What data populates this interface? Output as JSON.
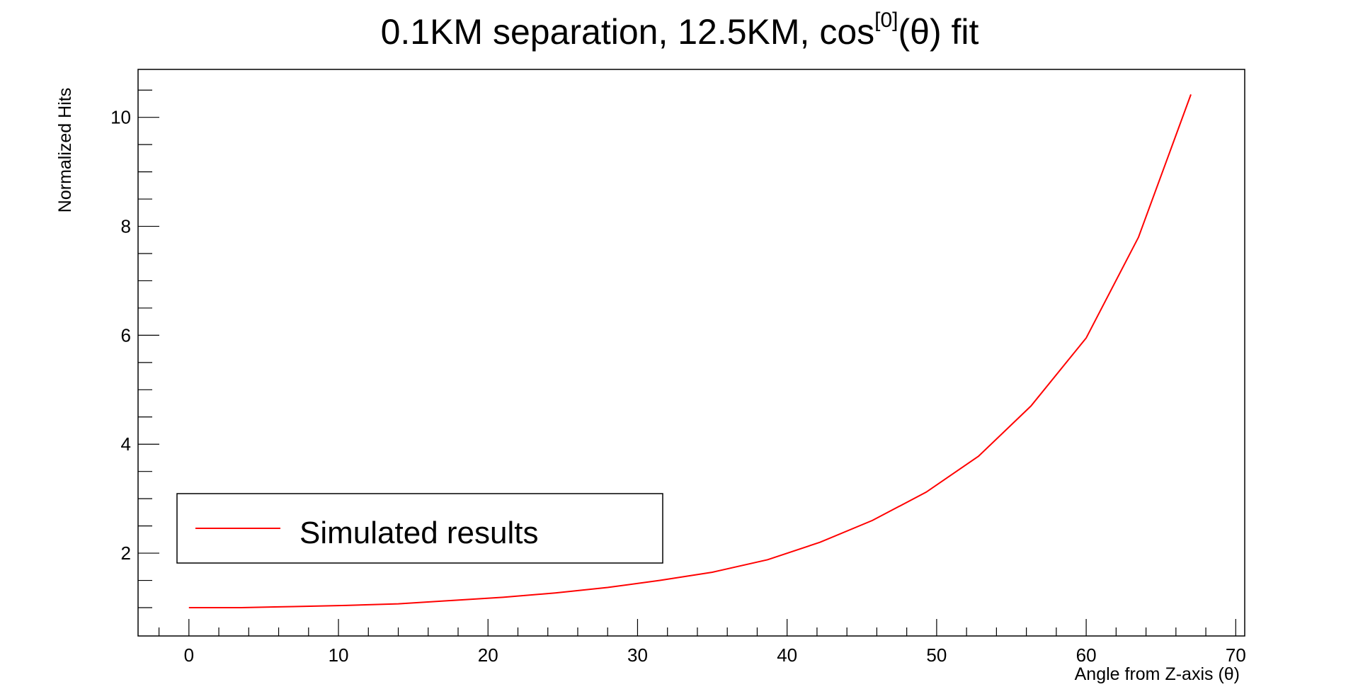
{
  "chart_data": {
    "type": "line",
    "title": {
      "main": "0.1KM separation, 12.5KM, cos",
      "superscript": "[0]",
      "suffix": "(θ) fit"
    },
    "xlabel": "Angle from Z-axis (θ)",
    "ylabel": "Normalized Hits",
    "xlim": [
      -3.4,
      70.6
    ],
    "ylim": [
      0.48,
      10.88
    ],
    "xticks": [
      0,
      10,
      20,
      30,
      40,
      50,
      60,
      70
    ],
    "xtick_labels": [
      "0",
      "10",
      "20",
      "30",
      "40",
      "50",
      "60",
      "70"
    ],
    "yticks": [
      2,
      4,
      6,
      8,
      10
    ],
    "ytick_labels": [
      "2",
      "4",
      "6",
      "8",
      "10"
    ],
    "grid": false,
    "legend_position": "bottom-left",
    "series": [
      {
        "name": "Simulated results",
        "color": "#ff0000",
        "x": [
          0,
          3.5,
          7.0,
          10.5,
          14.0,
          17.5,
          21.0,
          24.5,
          28.0,
          31.5,
          35.0,
          38.7,
          42.2,
          45.7,
          49.3,
          52.8,
          56.3,
          60.0,
          63.5,
          67.0
        ],
        "y": [
          1.0,
          1.0,
          1.02,
          1.04,
          1.07,
          1.13,
          1.19,
          1.27,
          1.37,
          1.5,
          1.65,
          1.88,
          2.2,
          2.6,
          3.12,
          3.78,
          4.7,
          5.95,
          7.8,
          10.42
        ]
      }
    ]
  }
}
